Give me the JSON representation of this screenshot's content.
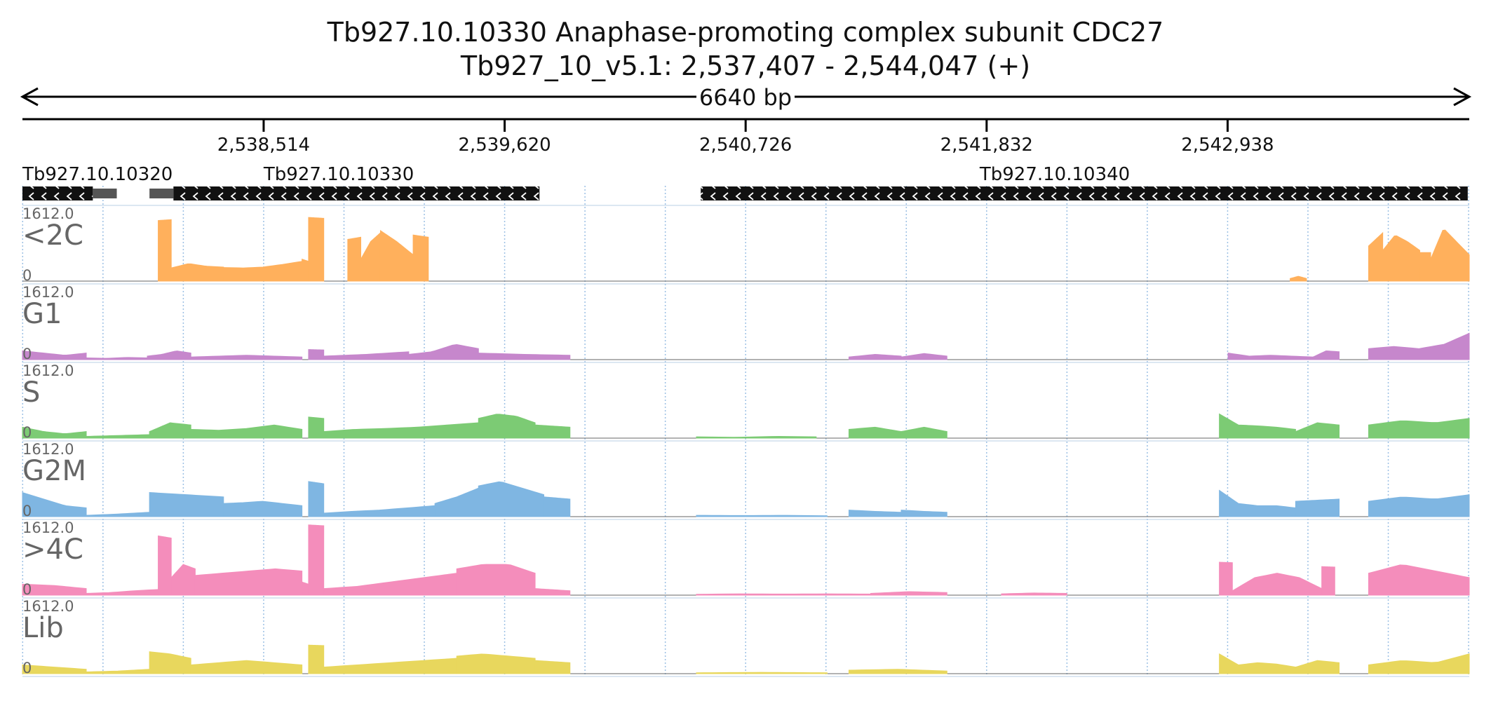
{
  "header": {
    "title": "Tb927.10.10330  Anaphase-promoting complex subunit CDC27",
    "location": "Tb927_10_v5.1: 2,537,407 - 2,544,047 (+)",
    "span_label": "6640 bp"
  },
  "chart_data": {
    "type": "area",
    "region": {
      "start": 2537407,
      "end": 2544047,
      "strand": "+"
    },
    "ticks": [
      {
        "pos": 2538514,
        "label": "2,538,514"
      },
      {
        "pos": 2539620,
        "label": "2,539,620"
      },
      {
        "pos": 2540726,
        "label": "2,540,726"
      },
      {
        "pos": 2541832,
        "label": "2,541,832"
      },
      {
        "pos": 2542938,
        "label": "2,542,938"
      }
    ],
    "genes": [
      {
        "id": "Tb927.10.10320",
        "strand": "-",
        "label_pos": 2537407,
        "segments": [
          {
            "start": 2537407,
            "end": 2537730,
            "kind": "cds"
          },
          {
            "start": 2537730,
            "end": 2537840,
            "kind": "utr"
          }
        ]
      },
      {
        "id": "Tb927.10.10330",
        "strand": "-",
        "label_pos": 2538514,
        "segments": [
          {
            "start": 2537990,
            "end": 2538100,
            "kind": "utr"
          },
          {
            "start": 2538100,
            "end": 2539780,
            "kind": "cds"
          }
        ]
      },
      {
        "id": "Tb927.10.10340",
        "strand": "-",
        "label_pos": 2541800,
        "segments": [
          {
            "start": 2540520,
            "end": 2544040,
            "kind": "cds"
          }
        ]
      }
    ],
    "tracks": [
      {
        "name": "<2C",
        "max_label": "1612.0",
        "min_label": "0",
        "ymax": 1612,
        "color": "#ffb05c",
        "segments": [
          {
            "start": 2538030,
            "end": 2538090,
            "v": [
              1380,
              1400
            ]
          },
          {
            "start": 2538090,
            "end": 2538330,
            "v": [
              300,
              400,
              340,
              320
            ]
          },
          {
            "start": 2538330,
            "end": 2538690,
            "v": [
              310,
              300,
              320,
              380,
              450
            ]
          },
          {
            "start": 2538690,
            "end": 2538720,
            "v": [
              500,
              450
            ]
          },
          {
            "start": 2538720,
            "end": 2538790,
            "v": [
              1450,
              1430
            ]
          },
          {
            "start": 2538900,
            "end": 2538960,
            "v": [
              950,
              1000
            ]
          },
          {
            "start": 2538960,
            "end": 2539050,
            "v": [
              500,
              900,
              1100
            ]
          },
          {
            "start": 2539050,
            "end": 2539200,
            "v": [
              1150,
              900,
              600
            ]
          },
          {
            "start": 2539200,
            "end": 2539270,
            "v": [
              1050,
              1000
            ]
          },
          {
            "start": 2543225,
            "end": 2543300,
            "v": [
              60,
              110,
              60
            ]
          },
          {
            "start": 2543585,
            "end": 2543650,
            "v": [
              800,
              1100
            ]
          },
          {
            "start": 2543650,
            "end": 2543820,
            "v": [
              700,
              1050,
              900,
              700
            ]
          },
          {
            "start": 2543820,
            "end": 2543870,
            "v": [
              650,
              650
            ]
          },
          {
            "start": 2543870,
            "end": 2544047,
            "v": [
              500,
              1200,
              900,
              600
            ]
          }
        ]
      },
      {
        "name": "G1",
        "max_label": "1612.0",
        "min_label": "0",
        "ymax": 1612,
        "color": "#c687cc",
        "segments": [
          {
            "start": 2537407,
            "end": 2537700,
            "v": [
              200,
              150,
              100,
              150
            ]
          },
          {
            "start": 2537700,
            "end": 2537980,
            "v": [
              40,
              30,
              50,
              40
            ]
          },
          {
            "start": 2537980,
            "end": 2538180,
            "v": [
              80,
              120,
              200,
              150
            ]
          },
          {
            "start": 2538180,
            "end": 2538690,
            "v": [
              60,
              80,
              100,
              80,
              60
            ]
          },
          {
            "start": 2538720,
            "end": 2538790,
            "v": [
              230,
              220
            ]
          },
          {
            "start": 2538790,
            "end": 2539180,
            "v": [
              80,
              100,
              120,
              150,
              180
            ]
          },
          {
            "start": 2539180,
            "end": 2539500,
            "v": [
              120,
              180,
              350,
              250
            ]
          },
          {
            "start": 2539500,
            "end": 2539920,
            "v": [
              150,
              120,
              100
            ]
          },
          {
            "start": 2541200,
            "end": 2541440,
            "v": [
              60,
              120,
              80
            ]
          },
          {
            "start": 2541440,
            "end": 2541650,
            "v": [
              60,
              140,
              80
            ]
          },
          {
            "start": 2542940,
            "end": 2543330,
            "v": [
              150,
              80,
              100,
              80,
              60
            ]
          },
          {
            "start": 2543330,
            "end": 2543450,
            "v": [
              60,
              200,
              180
            ]
          },
          {
            "start": 2543585,
            "end": 2544047,
            "v": [
              250,
              300,
              250,
              350,
              600
            ]
          }
        ]
      },
      {
        "name": "S",
        "max_label": "1612.0",
        "min_label": "0",
        "ymax": 1612,
        "color": "#7ccb74",
        "segments": [
          {
            "start": 2537407,
            "end": 2537700,
            "v": [
              250,
              150,
              100,
              150
            ]
          },
          {
            "start": 2537700,
            "end": 2537990,
            "v": [
              40,
              60,
              80
            ]
          },
          {
            "start": 2537990,
            "end": 2538180,
            "v": [
              150,
              350,
              300
            ]
          },
          {
            "start": 2538180,
            "end": 2538690,
            "v": [
              200,
              180,
              220,
              300,
              200
            ]
          },
          {
            "start": 2538720,
            "end": 2538790,
            "v": [
              480,
              450
            ]
          },
          {
            "start": 2538790,
            "end": 2539500,
            "v": [
              150,
              200,
              220,
              250,
              300,
              350
            ]
          },
          {
            "start": 2539500,
            "end": 2539760,
            "v": [
              450,
              550,
              500,
              350
            ]
          },
          {
            "start": 2539760,
            "end": 2539920,
            "v": [
              300,
              250
            ]
          },
          {
            "start": 2540500,
            "end": 2541050,
            "v": [
              30,
              20,
              40,
              30
            ]
          },
          {
            "start": 2541200,
            "end": 2541440,
            "v": [
              200,
              250,
              150
            ]
          },
          {
            "start": 2541440,
            "end": 2541650,
            "v": [
              150,
              250,
              150
            ]
          },
          {
            "start": 2542900,
            "end": 2543250,
            "v": [
              550,
              300,
              280,
              250,
              200
            ]
          },
          {
            "start": 2543250,
            "end": 2543450,
            "v": [
              150,
              350,
              300
            ]
          },
          {
            "start": 2543585,
            "end": 2544047,
            "v": [
              300,
              400,
              350,
              450
            ]
          }
        ]
      },
      {
        "name": "G2M",
        "max_label": "1612.0",
        "min_label": "0",
        "ymax": 1612,
        "color": "#7fb6e2",
        "segments": [
          {
            "start": 2537407,
            "end": 2537700,
            "v": [
              550,
              400,
              250,
              200
            ]
          },
          {
            "start": 2537700,
            "end": 2537990,
            "v": [
              30,
              60,
              100
            ]
          },
          {
            "start": 2537990,
            "end": 2538330,
            "v": [
              550,
              500,
              450
            ]
          },
          {
            "start": 2538330,
            "end": 2538690,
            "v": [
              300,
              320,
              350,
              300,
              250
            ]
          },
          {
            "start": 2538720,
            "end": 2538790,
            "v": [
              800,
              750
            ]
          },
          {
            "start": 2538790,
            "end": 2539300,
            "v": [
              80,
              120,
              150,
              200,
              250
            ]
          },
          {
            "start": 2539300,
            "end": 2539500,
            "v": [
              300,
              450,
              650
            ]
          },
          {
            "start": 2539500,
            "end": 2539800,
            "v": [
              700,
              800,
              650,
              500
            ]
          },
          {
            "start": 2539800,
            "end": 2539920,
            "v": [
              450,
              400
            ]
          },
          {
            "start": 2540500,
            "end": 2541100,
            "v": [
              30,
              25,
              30,
              20
            ]
          },
          {
            "start": 2541200,
            "end": 2541440,
            "v": [
              150,
              120,
              100
            ]
          },
          {
            "start": 2541440,
            "end": 2541650,
            "v": [
              150,
              120,
              100
            ]
          },
          {
            "start": 2542900,
            "end": 2543250,
            "v": [
              600,
              300,
              250,
              250,
              200
            ]
          },
          {
            "start": 2543250,
            "end": 2543450,
            "v": [
              350,
              400
            ]
          },
          {
            "start": 2543585,
            "end": 2544047,
            "v": [
              350,
              450,
              400,
              500
            ]
          }
        ]
      },
      {
        "name": ">4C",
        "max_label": "1612.0",
        "min_label": "0",
        "ymax": 1612,
        "color": "#f48dbb",
        "segments": [
          {
            "start": 2537407,
            "end": 2537700,
            "v": [
              250,
              220,
              150
            ]
          },
          {
            "start": 2537700,
            "end": 2538030,
            "v": [
              40,
              60,
              100,
              130
            ]
          },
          {
            "start": 2538030,
            "end": 2538090,
            "v": [
              1350,
              1300
            ]
          },
          {
            "start": 2538090,
            "end": 2538200,
            "v": [
              400,
              700,
              600
            ]
          },
          {
            "start": 2538200,
            "end": 2538690,
            "v": [
              450,
              500,
              550,
              600,
              550
            ]
          },
          {
            "start": 2538690,
            "end": 2538720,
            "v": [
              300,
              250
            ]
          },
          {
            "start": 2538720,
            "end": 2538790,
            "v": [
              1600,
              1580
            ]
          },
          {
            "start": 2538790,
            "end": 2539400,
            "v": [
              150,
              200,
              300,
              400,
              500
            ]
          },
          {
            "start": 2539400,
            "end": 2539760,
            "v": [
              600,
              700,
              700,
              500
            ]
          },
          {
            "start": 2539760,
            "end": 2539920,
            "v": [
              150,
              100
            ]
          },
          {
            "start": 2540500,
            "end": 2541300,
            "v": [
              20,
              30,
              25,
              30,
              25
            ]
          },
          {
            "start": 2541300,
            "end": 2541650,
            "v": [
              40,
              80,
              60
            ]
          },
          {
            "start": 2541900,
            "end": 2542200,
            "v": [
              30,
              50,
              40
            ]
          },
          {
            "start": 2542900,
            "end": 2542960,
            "v": [
              750,
              740
            ]
          },
          {
            "start": 2542960,
            "end": 2543370,
            "v": [
              100,
              400,
              500,
              400,
              150
            ]
          },
          {
            "start": 2543370,
            "end": 2543430,
            "v": [
              650,
              640
            ]
          },
          {
            "start": 2543585,
            "end": 2544047,
            "v": [
              500,
              700,
              550,
              400
            ]
          }
        ]
      },
      {
        "name": "Lib",
        "max_label": "1612.0",
        "min_label": "0",
        "ymax": 1612,
        "color": "#e8d75d",
        "segments": [
          {
            "start": 2537407,
            "end": 2537700,
            "v": [
              200,
              150,
              100
            ]
          },
          {
            "start": 2537700,
            "end": 2537990,
            "v": [
              40,
              60,
              100
            ]
          },
          {
            "start": 2537990,
            "end": 2538180,
            "v": [
              500,
              450,
              350
            ]
          },
          {
            "start": 2538180,
            "end": 2538690,
            "v": [
              200,
              250,
              300,
              250,
              200
            ]
          },
          {
            "start": 2538720,
            "end": 2538790,
            "v": [
              650,
              640
            ]
          },
          {
            "start": 2538790,
            "end": 2539400,
            "v": [
              150,
              200,
              250,
              300,
              350
            ]
          },
          {
            "start": 2539400,
            "end": 2539760,
            "v": [
              400,
              450,
              400,
              350
            ]
          },
          {
            "start": 2539760,
            "end": 2539920,
            "v": [
              300,
              250
            ]
          },
          {
            "start": 2540500,
            "end": 2541100,
            "v": [
              20,
              30,
              20
            ]
          },
          {
            "start": 2541200,
            "end": 2541650,
            "v": [
              80,
              100,
              60
            ]
          },
          {
            "start": 2542900,
            "end": 2543250,
            "v": [
              450,
              200,
              250,
              220,
              150
            ]
          },
          {
            "start": 2543250,
            "end": 2543450,
            "v": [
              150,
              300,
              250
            ]
          },
          {
            "start": 2543585,
            "end": 2544047,
            "v": [
              200,
              300,
              250,
              450
            ]
          }
        ]
      }
    ]
  }
}
